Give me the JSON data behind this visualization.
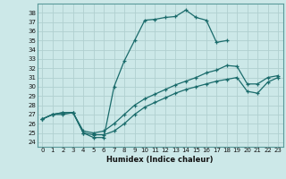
{
  "xlabel": "Humidex (Indice chaleur)",
  "bg_color": "#cce8e8",
  "grid_color": "#b0d0d0",
  "line_color": "#1a6b6b",
  "xlim": [
    -0.5,
    23.5
  ],
  "ylim": [
    23.5,
    39.0
  ],
  "xticks": [
    0,
    1,
    2,
    3,
    4,
    5,
    6,
    7,
    8,
    9,
    10,
    11,
    12,
    13,
    14,
    15,
    16,
    17,
    18,
    19,
    20,
    21,
    22,
    23
  ],
  "yticks": [
    24,
    25,
    26,
    27,
    28,
    29,
    30,
    31,
    32,
    33,
    34,
    35,
    36,
    37,
    38
  ],
  "curve1_x": [
    0,
    1,
    2,
    3,
    4,
    5,
    6,
    7,
    8,
    9,
    10,
    11,
    12,
    13,
    14,
    15,
    16,
    17,
    18
  ],
  "curve1_y": [
    26.5,
    27.0,
    27.0,
    27.2,
    25.0,
    24.5,
    24.5,
    30.0,
    32.8,
    35.0,
    37.2,
    37.3,
    37.5,
    37.6,
    38.3,
    37.5,
    37.2,
    34.8,
    35.0
  ],
  "curve2_x": [
    0,
    1,
    2,
    3,
    4,
    5,
    6,
    7,
    8,
    9,
    10,
    11,
    12,
    13,
    14,
    15,
    16,
    17,
    18,
    19,
    20,
    21,
    22,
    23
  ],
  "curve2_y": [
    26.5,
    27.0,
    27.2,
    27.2,
    25.2,
    25.0,
    25.2,
    26.0,
    27.0,
    28.0,
    28.7,
    29.2,
    29.7,
    30.2,
    30.6,
    31.0,
    31.5,
    31.8,
    32.3,
    32.2,
    30.3,
    30.3,
    31.0,
    31.2
  ],
  "curve3_x": [
    0,
    1,
    2,
    3,
    4,
    5,
    6,
    7,
    8,
    9,
    10,
    11,
    12,
    13,
    14,
    15,
    16,
    17,
    18,
    19,
    20,
    21,
    22,
    23
  ],
  "curve3_y": [
    26.5,
    27.0,
    27.2,
    27.2,
    25.0,
    24.8,
    24.8,
    25.2,
    26.0,
    27.0,
    27.8,
    28.3,
    28.8,
    29.3,
    29.7,
    30.0,
    30.3,
    30.6,
    30.8,
    31.0,
    29.5,
    29.3,
    30.5,
    31.0
  ]
}
